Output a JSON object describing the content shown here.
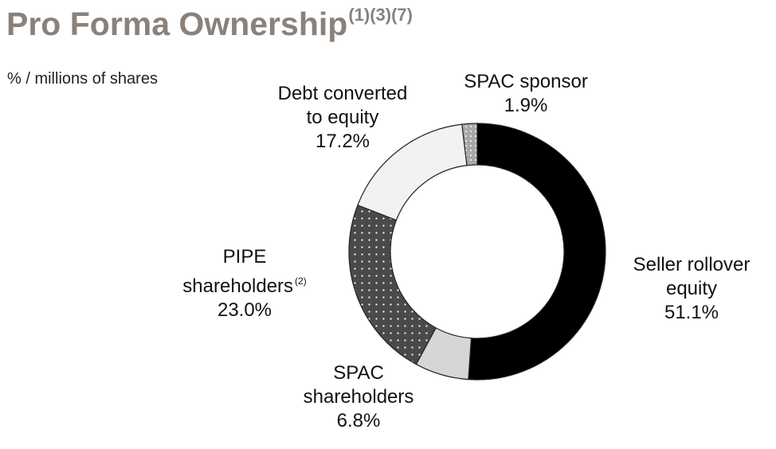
{
  "title": "Pro Forma Ownership",
  "title_footnotes": "(1)(3)(7)",
  "subtitle": "% / millions of shares",
  "chart_data": {
    "type": "pie",
    "donut": true,
    "start": "12 o'clock, clockwise",
    "slices": [
      {
        "label": "Seller rollover equity",
        "lines": [
          "Seller rollover",
          "equity"
        ],
        "value": 51.1,
        "value_label": "51.1%",
        "fill": "#000000",
        "pattern": "none"
      },
      {
        "label": "SPAC shareholders",
        "lines": [
          "SPAC",
          "shareholders"
        ],
        "value": 6.8,
        "value_label": "6.8%",
        "fill": "#d6d6d6",
        "pattern": "none"
      },
      {
        "label": "PIPE shareholders",
        "lines": [
          "PIPE",
          "shareholders"
        ],
        "footnote": "(2)",
        "value": 23.0,
        "value_label": "23.0%",
        "fill": "#4a4a4a",
        "pattern": "white-dots"
      },
      {
        "label": "Debt converted to equity",
        "lines": [
          "Debt converted",
          "to equity"
        ],
        "value": 17.2,
        "value_label": "17.2%",
        "fill": "#f2f2f2",
        "pattern": "none"
      },
      {
        "label": "SPAC sponsor",
        "lines": [
          "SPAC sponsor"
        ],
        "value": 1.9,
        "value_label": "1.9%",
        "fill": "#a8a8a8",
        "pattern": "white-dots"
      }
    ]
  }
}
